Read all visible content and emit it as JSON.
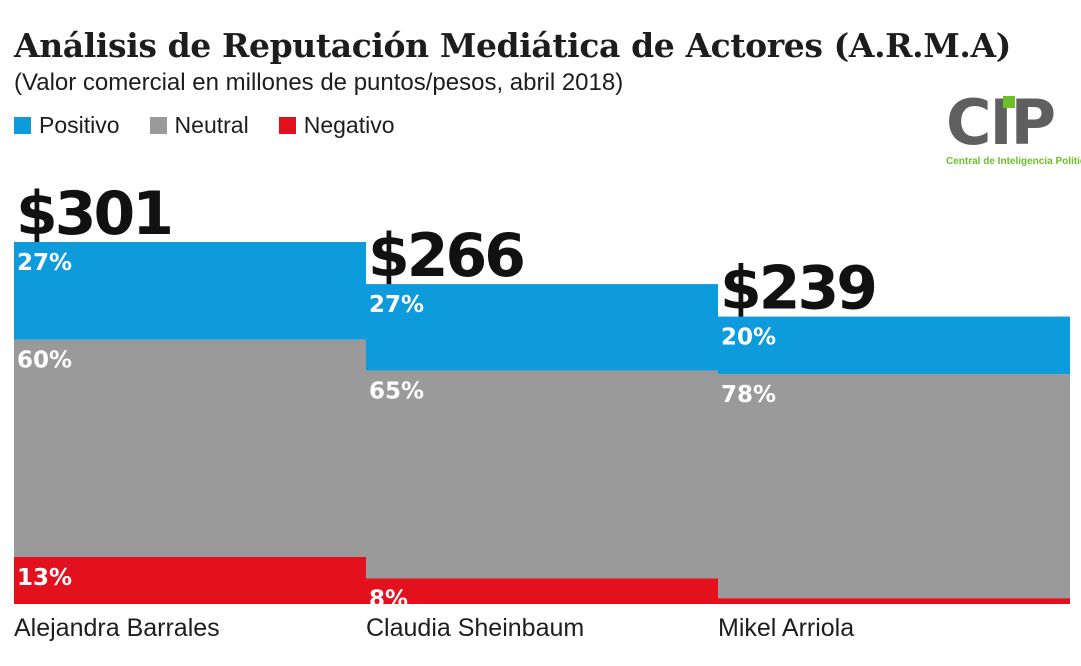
{
  "title": "Análisis de Reputación Mediática de Actores (A.R.M.A)",
  "subtitle": "(Valor comercial en millones de puntos/pesos, abril 2018)",
  "logo": {
    "text": "CIP",
    "tagline": "Central de Inteligencia Política"
  },
  "colors": {
    "positivo": "#0e9bdc",
    "neutral": "#9a9a9a",
    "negativo": "#e3101e"
  },
  "chart_data": {
    "type": "bar",
    "title": "Análisis de Reputación Mediática de Actores (A.R.M.A)",
    "subtitle": "(Valor comercial en millones de puntos/pesos, abril 2018)",
    "legend": [
      "Positivo",
      "Neutral",
      "Negativo"
    ],
    "legend_position": "top-left",
    "categories": [
      "Alejandra Barrales",
      "Claudia Sheinbaum",
      "Mikel Arriola"
    ],
    "totals": [
      301,
      266,
      239
    ],
    "total_labels": [
      "$301",
      "$266",
      "$239"
    ],
    "series": [
      {
        "name": "Positivo",
        "values": [
          27,
          27,
          20
        ]
      },
      {
        "name": "Neutral",
        "values": [
          60,
          65,
          78
        ]
      },
      {
        "name": "Negativo",
        "values": [
          13,
          8,
          2
        ]
      }
    ],
    "ylabel": "",
    "xlabel": ""
  }
}
